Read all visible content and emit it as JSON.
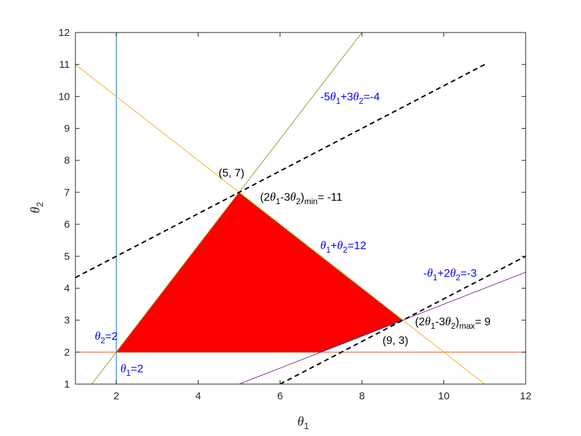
{
  "chart_data": {
    "type": "line",
    "xlabel": "θ1",
    "ylabel": "θ2",
    "xlim": [
      1,
      12
    ],
    "ylim": [
      1,
      12
    ],
    "x_ticks": [
      2,
      4,
      6,
      8,
      10,
      12
    ],
    "y_ticks": [
      1,
      2,
      3,
      4,
      5,
      6,
      7,
      8,
      9,
      10,
      11,
      12
    ],
    "grid": false,
    "colors": {
      "feasible_region": "#ff0000",
      "constraint_theta1": "#0072bd",
      "constraint_theta2": "#d95319",
      "constraint_sum": "#edb120",
      "constraint_diag_up": "#77ac30",
      "constraint_diag_low": "#7e2f8e",
      "objective_lines": "#000000",
      "label_text_blue": "#0000ff"
    },
    "feasible_region": {
      "vertices": [
        [
          2,
          2
        ],
        [
          5,
          7
        ],
        [
          9,
          3
        ],
        [
          7,
          2
        ]
      ]
    },
    "series": [
      {
        "points": [
          [
            2,
            1
          ],
          [
            2,
            12
          ]
        ]
      },
      {
        "points": [
          [
            1,
            2
          ],
          [
            12,
            2
          ]
        ]
      },
      {
        "points": [
          [
            1,
            11
          ],
          [
            11,
            1
          ]
        ]
      },
      {
        "points": [
          [
            1.4,
            1
          ],
          [
            8,
            12
          ]
        ]
      },
      {
        "points": [
          [
            5,
            1
          ],
          [
            12,
            4.5
          ]
        ]
      },
      {
        "style": "dashed",
        "points": [
          [
            1,
            4.333
          ],
          [
            11,
            11
          ]
        ]
      },
      {
        "style": "dashed",
        "points": [
          [
            6,
            1
          ],
          [
            12,
            5
          ]
        ]
      }
    ],
    "annotations": [
      {
        "id": "a-neg5",
        "color": "#0000ff",
        "parts": [
          [
            "-5",
            "t"
          ],
          [
            "θ",
            "v"
          ],
          [
            "1",
            "sub"
          ],
          [
            "+3",
            "t"
          ],
          [
            "θ",
            "v"
          ],
          [
            "2",
            "sub"
          ],
          [
            "=-4",
            "t"
          ]
        ]
      },
      {
        "id": "a-sum",
        "color": "#0000ff",
        "parts": [
          [
            "θ",
            "v"
          ],
          [
            "1",
            "sub"
          ],
          [
            "+",
            "t"
          ],
          [
            "θ",
            "v"
          ],
          [
            "2",
            "sub"
          ],
          [
            "=12",
            "t"
          ]
        ]
      },
      {
        "id": "a-neg1",
        "color": "#0000ff",
        "parts": [
          [
            "-",
            "t"
          ],
          [
            "θ",
            "v"
          ],
          [
            "1",
            "sub"
          ],
          [
            "+2",
            "t"
          ],
          [
            "θ",
            "v"
          ],
          [
            "2",
            "sub"
          ],
          [
            "=-3",
            "t"
          ]
        ]
      },
      {
        "id": "a-t2",
        "color": "#0000ff",
        "parts": [
          [
            "θ",
            "v"
          ],
          [
            "2",
            "sub"
          ],
          [
            "=2",
            "t"
          ]
        ]
      },
      {
        "id": "a-t1",
        "color": "#0000ff",
        "parts": [
          [
            "θ",
            "v"
          ],
          [
            "1",
            "sub"
          ],
          [
            "=2",
            "t"
          ]
        ]
      },
      {
        "id": "a-min",
        "color": "#000000",
        "parts": [
          [
            "(2",
            "t"
          ],
          [
            "θ",
            "v"
          ],
          [
            "1",
            "sub"
          ],
          [
            "-3",
            "t"
          ],
          [
            "θ",
            "v"
          ],
          [
            "2",
            "sub"
          ],
          [
            ")",
            "t"
          ],
          [
            "min",
            "sub"
          ],
          [
            "= -11",
            "t"
          ]
        ]
      },
      {
        "id": "a-max",
        "color": "#000000",
        "parts": [
          [
            "(2",
            "t"
          ],
          [
            "θ",
            "v"
          ],
          [
            "1",
            "sub"
          ],
          [
            "-3",
            "t"
          ],
          [
            "θ",
            "v"
          ],
          [
            "2",
            "sub"
          ],
          [
            ")",
            "t"
          ],
          [
            "max",
            "sub"
          ],
          [
            "= 9",
            "t"
          ]
        ]
      },
      {
        "id": "a-p57",
        "color": "#000000",
        "parts": [
          [
            "(5, 7)",
            "t"
          ]
        ]
      },
      {
        "id": "a-p93",
        "color": "#000000",
        "parts": [
          [
            "(9, 3)",
            "t"
          ]
        ]
      }
    ]
  }
}
